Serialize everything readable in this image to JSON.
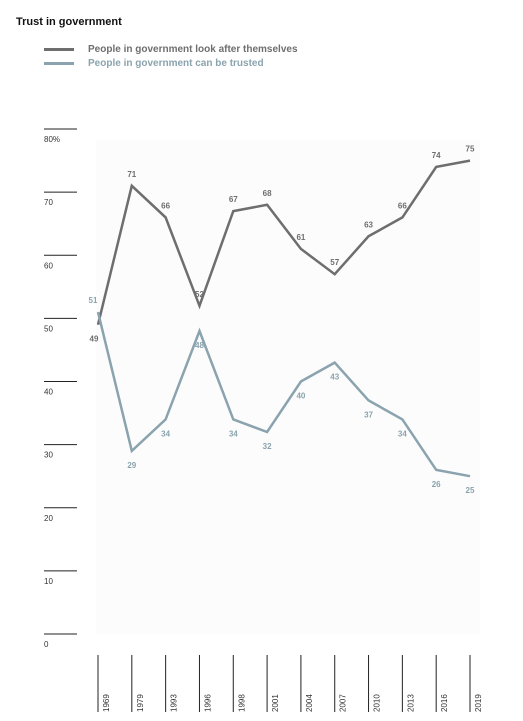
{
  "chart_data": {
    "type": "line",
    "title": "Trust in government",
    "categories": [
      "1969",
      "1979",
      "1993",
      "1996",
      "1998",
      "2001",
      "2004",
      "2007",
      "2010",
      "2013",
      "2016",
      "2019"
    ],
    "series": [
      {
        "name": "People in government look after themselves",
        "color": "#6e6e6e",
        "values": [
          49,
          71,
          66,
          52,
          67,
          68,
          61,
          57,
          63,
          66,
          74,
          75
        ]
      },
      {
        "name": "People in government can be trusted",
        "color": "#8aa3ae",
        "values": [
          51,
          29,
          34,
          48,
          34,
          32,
          40,
          43,
          37,
          34,
          26,
          25
        ]
      }
    ],
    "y_ticks": [
      "80%",
      "70",
      "60",
      "50",
      "40",
      "30",
      "20",
      "10",
      "0"
    ],
    "ylim": [
      0,
      80
    ],
    "grid": false,
    "legend_position": "top-left"
  }
}
